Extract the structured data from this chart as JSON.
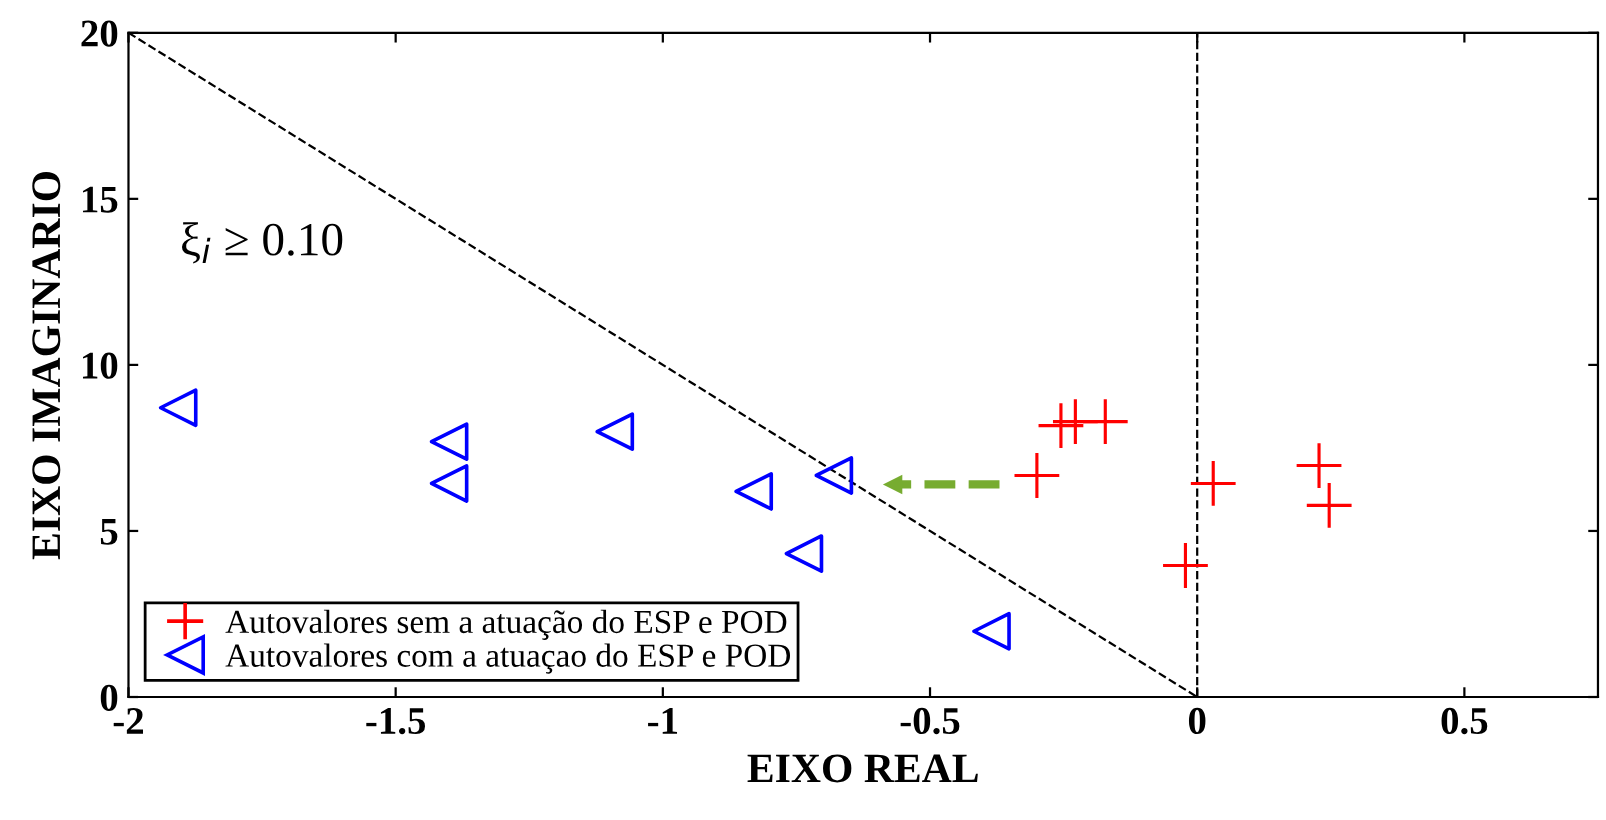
{
  "chart_data": {
    "type": "scatter",
    "xlabel": "EIXO REAL",
    "ylabel": "EIXO IMAGINARIO",
    "xlim": [
      -2,
      0.75
    ],
    "ylim": [
      0,
      20
    ],
    "xticks": [
      -2,
      -1.5,
      -1,
      -0.5,
      0,
      0.5
    ],
    "yticks": [
      0,
      5,
      10,
      15,
      20
    ],
    "grid": false,
    "legend": "bottom left",
    "series": [
      {
        "name": "Autovalores sem a atuação do ESP e POD",
        "color": "#ff0000",
        "marker": "cross",
        "x": [
          -0.3,
          -0.255,
          -0.228,
          -0.172,
          -0.022,
          0.03,
          0.228,
          0.247
        ],
        "values": [
          6.67,
          8.17,
          8.29,
          8.29,
          3.96,
          6.43,
          6.97,
          5.77
        ]
      },
      {
        "name": "Autovalores com a atuaçao do ESP e POD",
        "color": "#0000ff",
        "marker": "triangle",
        "x": [
          -1.907,
          -1.4,
          -1.4,
          -1.09,
          -0.83,
          -0.736,
          -0.68,
          -0.385
        ],
        "values": [
          8.71,
          7.69,
          6.43,
          7.99,
          6.19,
          4.32,
          6.67,
          1.98
        ]
      },
      {
        "type": "line",
        "color": "#000000",
        "line_style": "dashed",
        "x": [
          -2,
          0
        ],
        "values": [
          20,
          0
        ]
      },
      {
        "type": "line",
        "color": "#77ac30",
        "line_style": "dashed",
        "x": [
          -0.37,
          -0.57
        ],
        "values": [
          6.4,
          6.4
        ]
      }
    ],
    "ref_lines": [
      {
        "axis": "x",
        "value": 0,
        "color": "#000000",
        "line_style": "dashed"
      }
    ],
    "annotations": [
      "ξ$_{i}$ ≥ 0.10"
    ]
  }
}
